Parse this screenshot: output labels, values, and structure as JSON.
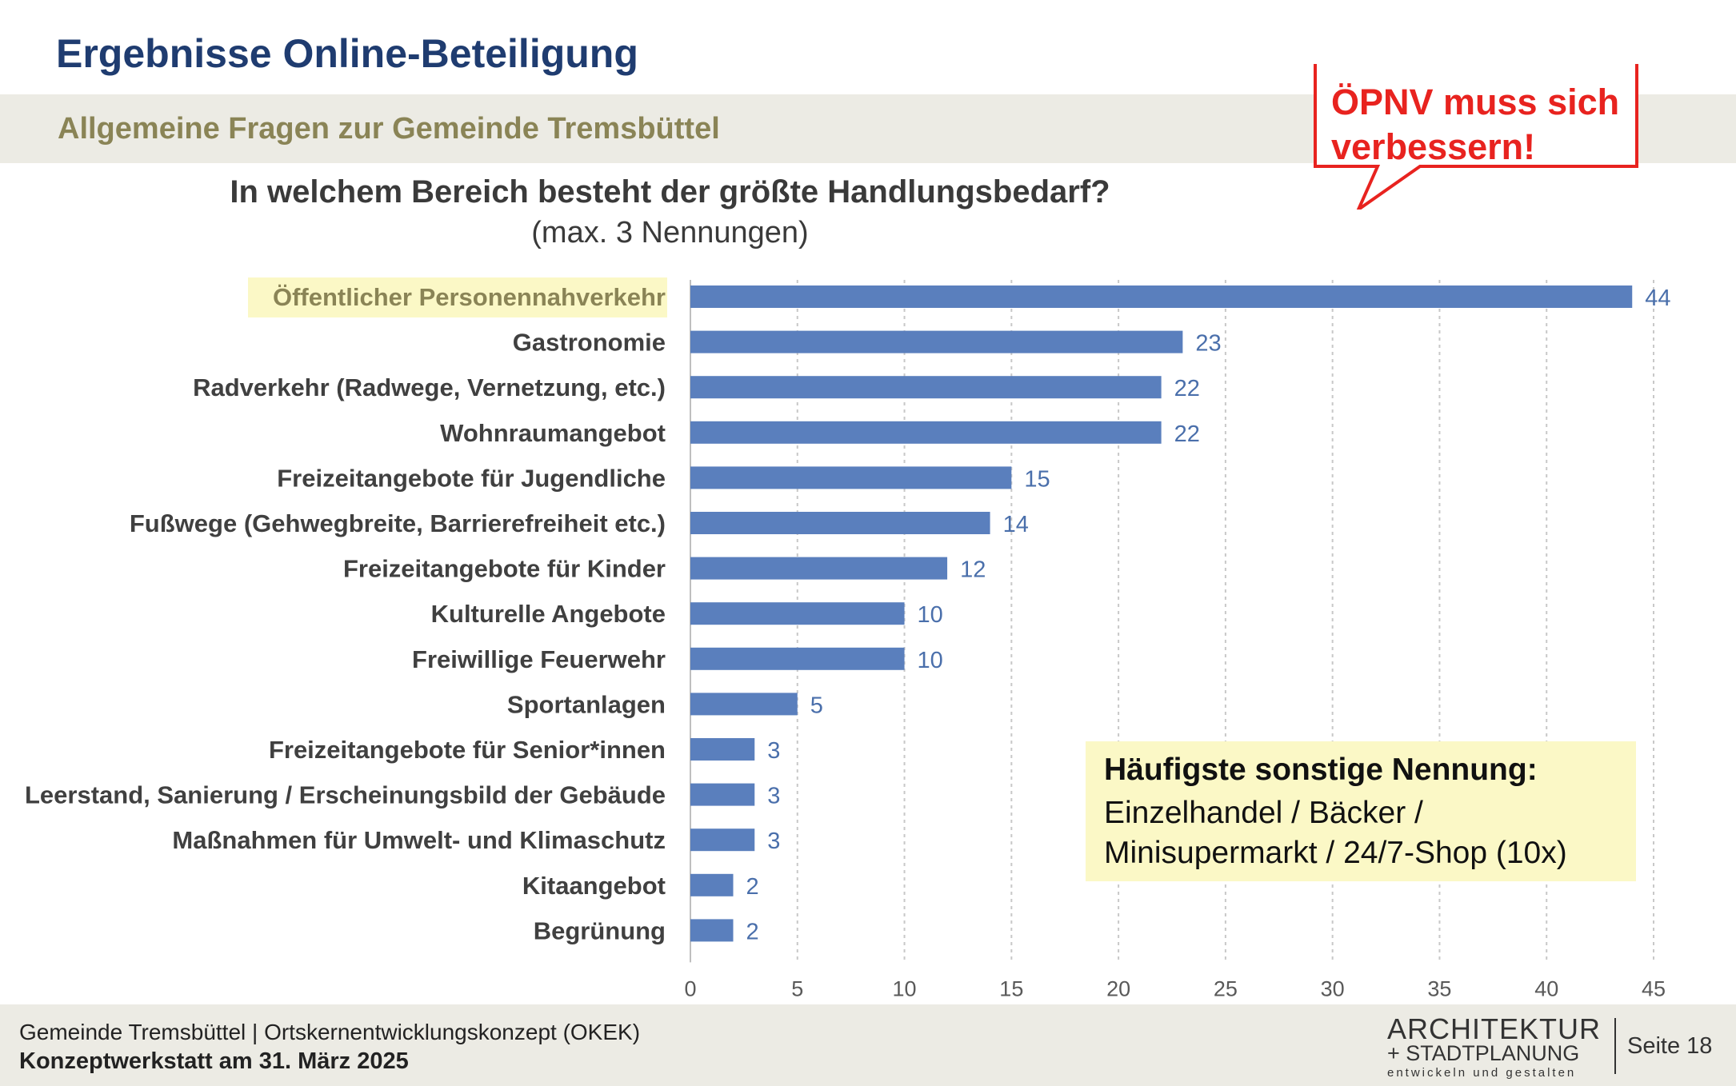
{
  "header": {
    "title": "Ergebnisse Online-Beteiligung",
    "subtitle": "Allgemeine Fragen zur Gemeinde Tremsbüttel"
  },
  "question": {
    "main": "In welchem Bereich besteht der größte Handlungsbedarf?",
    "note": "(max. 3 Nennungen)"
  },
  "callout": {
    "line1": "ÖPNV muss sich",
    "line2": "verbessern!"
  },
  "other_mentions": {
    "title": "Häufigste sonstige Nennung:",
    "line1": "Einzelhandel / Bäcker /",
    "line2": "Minisupermarkt / 24/7-Shop (10x)"
  },
  "footer": {
    "line1": "Gemeinde Tremsbüttel | Ortskernentwicklungskonzept (OKEK)",
    "line2": "Konzeptwerkstatt am 31. März 2025",
    "logo_line1": "ARCHITEKTUR",
    "logo_line2": "+ STADTPLANUNG",
    "logo_line3": "entwickeln und gestalten",
    "page": "Seite 18"
  },
  "colors": {
    "bar": "#5a7fbd",
    "title": "#1f3c70",
    "callout": "#e8231f",
    "highlight": "#fbf8c6"
  },
  "chart_data": {
    "type": "bar",
    "orientation": "horizontal",
    "title": "In welchem Bereich besteht der größte Handlungsbedarf?",
    "categories": [
      "Öffentlicher Personennahverkehr",
      "Gastronomie",
      "Radverkehr (Radwege, Vernetzung, etc.)",
      "Wohnraumangebot",
      "Freizeitangebote für Jugendliche",
      "Fußwege (Gehwegbreite, Barrierefreiheit etc.)",
      "Freizeitangebote für Kinder",
      "Kulturelle Angebote",
      "Freiwillige Feuerwehr",
      "Sportanlagen",
      "Freizeitangebote für Senior*innen",
      "Leerstand, Sanierung / Erscheinungsbild der Gebäude",
      "Maßnahmen für Umwelt- und Klimaschutz",
      "Kitaangebot",
      "Begrünung"
    ],
    "values": [
      44,
      23,
      22,
      22,
      15,
      14,
      12,
      10,
      10,
      5,
      3,
      3,
      3,
      2,
      2
    ],
    "xlim": [
      0,
      45
    ],
    "xticks": [
      0,
      5,
      10,
      15,
      20,
      25,
      30,
      35,
      40,
      45
    ],
    "highlighted_category": "Öffentlicher Personennahverkehr",
    "grid": "vertical dashed"
  }
}
